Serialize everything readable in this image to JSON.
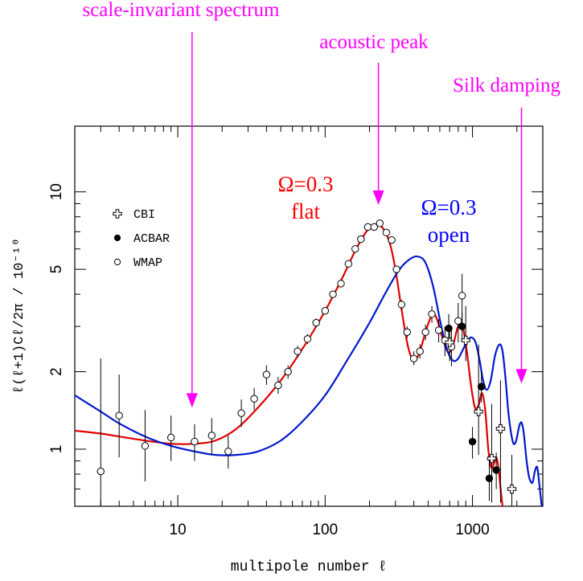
{
  "chart_data": {
    "type": "scatter",
    "xlabel": "multipole number ℓ",
    "ylabel": "ℓ(ℓ+1)Cℓ/2π  /  10⁻¹⁰",
    "xscale": "log",
    "yscale": "log",
    "xlim": [
      2,
      3000
    ],
    "ylim": [
      0.6,
      18
    ],
    "x_ticks": [
      10,
      100,
      1000
    ],
    "y_ticks": [
      1,
      2,
      5,
      10
    ],
    "grid": false,
    "legend_position": "top-left",
    "legend": [
      {
        "marker": "cross-open",
        "label": "CBI"
      },
      {
        "marker": "circle-filled",
        "label": "ACBAR"
      },
      {
        "marker": "circle-open",
        "label": "WMAP"
      }
    ],
    "annotations": [
      {
        "text": "scale-invariant spectrum",
        "arrow_x": 12.5,
        "arrow_tip_y": 1.45,
        "color": "#ff00ff"
      },
      {
        "text": "acoustic peak",
        "arrow_x": 230,
        "arrow_tip_y": 8.9,
        "color": "#ff00ff"
      },
      {
        "text": "Silk damping",
        "arrow_x": 2150,
        "arrow_tip_y": 1.8,
        "color": "#ff00ff"
      }
    ],
    "curve_labels": [
      {
        "lines": [
          "Ω=0.3",
          "flat"
        ],
        "color": "#ff0000"
      },
      {
        "lines": [
          "Ω=0.3",
          "open"
        ],
        "color": "#0000ff"
      }
    ],
    "series": [
      {
        "marker": "circle-open",
        "points": [
          {
            "x": 3,
            "y": 0.82,
            "lo": 0.5,
            "hi": 2.25
          },
          {
            "x": 4,
            "y": 1.35,
            "lo": 0.93,
            "hi": 1.95
          },
          {
            "x": 6,
            "y": 1.03,
            "lo": 0.75,
            "hi": 1.42
          },
          {
            "x": 9,
            "y": 1.11,
            "lo": 0.9,
            "hi": 1.35
          },
          {
            "x": 13,
            "y": 1.07,
            "lo": 0.9,
            "hi": 1.25
          },
          {
            "x": 17,
            "y": 1.13,
            "lo": 0.95,
            "hi": 1.32
          },
          {
            "x": 22,
            "y": 0.98,
            "lo": 0.84,
            "hi": 1.13
          },
          {
            "x": 27,
            "y": 1.38,
            "lo": 1.22,
            "hi": 1.56
          },
          {
            "x": 33,
            "y": 1.57,
            "lo": 1.42,
            "hi": 1.73
          },
          {
            "x": 40,
            "y": 1.95,
            "lo": 1.78,
            "hi": 2.12
          },
          {
            "x": 48,
            "y": 1.77,
            "lo": 1.64,
            "hi": 1.91
          },
          {
            "x": 56,
            "y": 2.0,
            "lo": 1.88,
            "hi": 2.12
          },
          {
            "x": 65,
            "y": 2.4,
            "lo": 2.28,
            "hi": 2.52
          },
          {
            "x": 76,
            "y": 2.68,
            "lo": 2.56,
            "hi": 2.8
          },
          {
            "x": 87,
            "y": 3.1,
            "lo": 2.98,
            "hi": 3.22
          },
          {
            "x": 100,
            "y": 3.45,
            "lo": 3.33,
            "hi": 3.57
          },
          {
            "x": 113,
            "y": 4.0,
            "lo": 3.88,
            "hi": 4.12
          },
          {
            "x": 128,
            "y": 4.4,
            "lo": 4.27,
            "hi": 4.53
          },
          {
            "x": 144,
            "y": 5.25,
            "lo": 5.1,
            "hi": 5.4
          },
          {
            "x": 160,
            "y": 6.0,
            "lo": 5.85,
            "hi": 6.15
          },
          {
            "x": 175,
            "y": 6.55,
            "lo": 6.4,
            "hi": 6.7
          },
          {
            "x": 195,
            "y": 7.3,
            "lo": 7.15,
            "hi": 7.45
          },
          {
            "x": 215,
            "y": 7.3,
            "lo": 7.15,
            "hi": 7.45
          },
          {
            "x": 235,
            "y": 7.55,
            "lo": 7.4,
            "hi": 7.7
          },
          {
            "x": 260,
            "y": 6.95,
            "lo": 6.8,
            "hi": 7.1
          },
          {
            "x": 283,
            "y": 6.5,
            "lo": 6.35,
            "hi": 6.65
          },
          {
            "x": 305,
            "y": 5.0,
            "lo": 4.85,
            "hi": 5.15
          },
          {
            "x": 330,
            "y": 3.65,
            "lo": 3.5,
            "hi": 3.8
          },
          {
            "x": 360,
            "y": 2.85,
            "lo": 2.7,
            "hi": 3.0
          },
          {
            "x": 400,
            "y": 2.25,
            "lo": 2.12,
            "hi": 2.4
          },
          {
            "x": 440,
            "y": 2.4,
            "lo": 2.25,
            "hi": 2.56
          },
          {
            "x": 480,
            "y": 2.85,
            "lo": 2.65,
            "hi": 3.05
          },
          {
            "x": 530,
            "y": 3.35,
            "lo": 3.1,
            "hi": 3.6
          },
          {
            "x": 590,
            "y": 2.9,
            "lo": 2.6,
            "hi": 3.2
          },
          {
            "x": 650,
            "y": 2.65,
            "lo": 2.3,
            "hi": 3.0
          },
          {
            "x": 720,
            "y": 2.5,
            "lo": 2.1,
            "hi": 2.9
          },
          {
            "x": 800,
            "y": 3.15,
            "lo": 2.6,
            "hi": 3.7
          },
          {
            "x": 850,
            "y": 3.95,
            "lo": 3.1,
            "hi": 4.8
          }
        ]
      },
      {
        "marker": "circle-filled",
        "points": [
          {
            "x": 690,
            "y": 2.95,
            "lo": 2.55,
            "hi": 3.35
          },
          {
            "x": 850,
            "y": 3.0,
            "lo": 2.62,
            "hi": 3.4
          },
          {
            "x": 1000,
            "y": 1.07,
            "lo": 0.92,
            "hi": 1.22
          },
          {
            "x": 1150,
            "y": 1.75,
            "lo": 1.52,
            "hi": 2.0
          },
          {
            "x": 1300,
            "y": 0.77,
            "lo": 0.63,
            "hi": 0.92
          },
          {
            "x": 1450,
            "y": 0.83,
            "lo": 0.7,
            "hi": 0.97
          }
        ]
      },
      {
        "marker": "cross-open",
        "points": [
          {
            "x": 700,
            "y": 2.6,
            "lo": 2.2,
            "hi": 3.0
          },
          {
            "x": 900,
            "y": 2.65,
            "lo": 2.2,
            "hi": 3.6
          },
          {
            "x": 1100,
            "y": 1.4,
            "lo": 0.95,
            "hi": 2.55
          },
          {
            "x": 1350,
            "y": 0.92,
            "lo": 0.62,
            "hi": 1.5
          },
          {
            "x": 1550,
            "y": 1.2,
            "lo": 0.62,
            "hi": 1.85
          },
          {
            "x": 1850,
            "y": 0.7,
            "lo": 0.55,
            "hi": 0.95
          }
        ]
      }
    ],
    "curves": [
      {
        "color": "#e00000",
        "points": [
          [
            2,
            1.18
          ],
          [
            3,
            1.15
          ],
          [
            4,
            1.12
          ],
          [
            6,
            1.08
          ],
          [
            9,
            1.05
          ],
          [
            13,
            1.05
          ],
          [
            18,
            1.08
          ],
          [
            25,
            1.2
          ],
          [
            35,
            1.45
          ],
          [
            50,
            1.85
          ],
          [
            70,
            2.45
          ],
          [
            100,
            3.45
          ],
          [
            130,
            4.6
          ],
          [
            160,
            5.9
          ],
          [
            190,
            7.0
          ],
          [
            210,
            7.4
          ],
          [
            230,
            7.45
          ],
          [
            250,
            7.15
          ],
          [
            275,
            6.3
          ],
          [
            300,
            5.0
          ],
          [
            330,
            3.5
          ],
          [
            360,
            2.6
          ],
          [
            385,
            2.27
          ],
          [
            410,
            2.22
          ],
          [
            440,
            2.4
          ],
          [
            480,
            2.85
          ],
          [
            520,
            3.25
          ],
          [
            550,
            3.35
          ],
          [
            580,
            3.15
          ],
          [
            620,
            2.75
          ],
          [
            670,
            2.42
          ],
          [
            700,
            2.38
          ],
          [
            740,
            2.55
          ],
          [
            790,
            2.95
          ],
          [
            830,
            3.1
          ],
          [
            870,
            2.9
          ],
          [
            920,
            2.35
          ],
          [
            980,
            1.75
          ],
          [
            1040,
            1.45
          ],
          [
            1100,
            1.48
          ],
          [
            1160,
            1.65
          ],
          [
            1220,
            1.42
          ],
          [
            1280,
            1.0
          ],
          [
            1340,
            0.85
          ],
          [
            1400,
            0.88
          ],
          [
            1450,
            0.93
          ],
          [
            1500,
            0.85
          ],
          [
            1560,
            0.68
          ],
          [
            1600,
            0.6
          ]
        ]
      },
      {
        "color": "#0018d0",
        "points": [
          [
            2,
            1.62
          ],
          [
            3,
            1.4
          ],
          [
            4,
            1.26
          ],
          [
            6,
            1.12
          ],
          [
            9,
            1.03
          ],
          [
            13,
            0.98
          ],
          [
            18,
            0.95
          ],
          [
            25,
            0.95
          ],
          [
            35,
            0.98
          ],
          [
            50,
            1.08
          ],
          [
            70,
            1.28
          ],
          [
            100,
            1.62
          ],
          [
            140,
            2.2
          ],
          [
            200,
            3.1
          ],
          [
            260,
            4.1
          ],
          [
            320,
            5.0
          ],
          [
            380,
            5.5
          ],
          [
            430,
            5.6
          ],
          [
            480,
            5.3
          ],
          [
            540,
            4.3
          ],
          [
            600,
            3.2
          ],
          [
            650,
            2.6
          ],
          [
            700,
            2.3
          ],
          [
            750,
            2.2
          ],
          [
            800,
            2.25
          ],
          [
            850,
            2.4
          ],
          [
            920,
            2.62
          ],
          [
            980,
            2.72
          ],
          [
            1050,
            2.6
          ],
          [
            1120,
            2.2
          ],
          [
            1180,
            1.85
          ],
          [
            1250,
            1.7
          ],
          [
            1330,
            1.85
          ],
          [
            1420,
            2.3
          ],
          [
            1520,
            2.55
          ],
          [
            1600,
            2.4
          ],
          [
            1680,
            1.85
          ],
          [
            1750,
            1.4
          ],
          [
            1830,
            1.15
          ],
          [
            1900,
            1.05
          ],
          [
            1980,
            1.08
          ],
          [
            2070,
            1.22
          ],
          [
            2150,
            1.27
          ],
          [
            2230,
            1.15
          ],
          [
            2320,
            0.92
          ],
          [
            2420,
            0.78
          ],
          [
            2550,
            0.74
          ],
          [
            2650,
            0.82
          ],
          [
            2750,
            0.85
          ],
          [
            2850,
            0.72
          ],
          [
            2950,
            0.6
          ]
        ]
      }
    ]
  }
}
